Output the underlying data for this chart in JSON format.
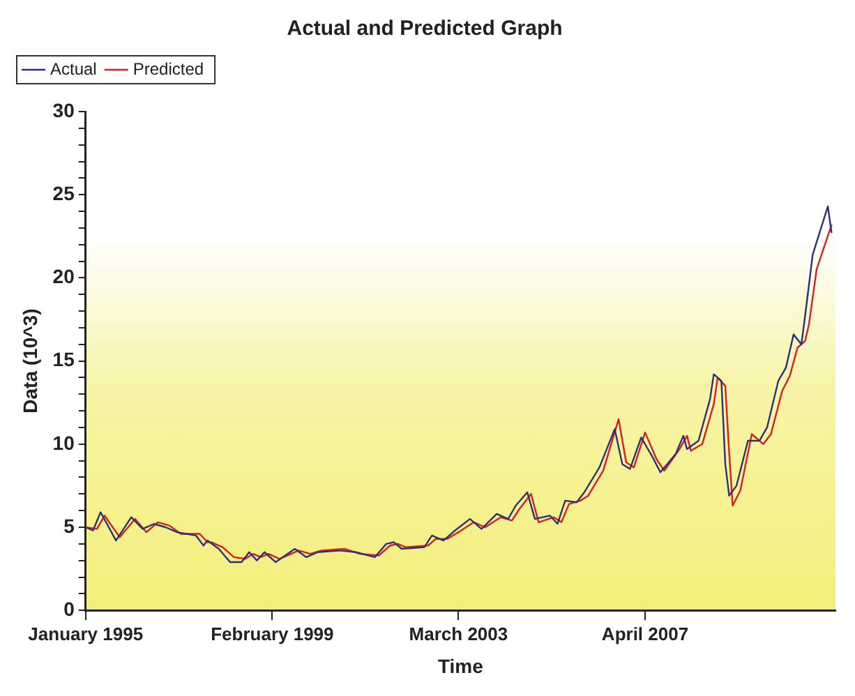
{
  "chart_data": {
    "type": "line",
    "title": "Actual and Predicted Graph",
    "xlabel": "Time",
    "ylabel": "Data (10^3)",
    "legend": "top left",
    "grid": false,
    "marker": "none",
    "line_style": "solid",
    "xlim": [
      "1995-01",
      "2011-06"
    ],
    "xticks": [
      {
        "value": "1995-01",
        "label": "January 1995"
      },
      {
        "value": "1999-02",
        "label": "February 1999"
      },
      {
        "value": "2003-03",
        "label": "March 2003"
      },
      {
        "value": "2007-04",
        "label": "April 2007"
      }
    ],
    "ylim": [
      0,
      30
    ],
    "yticks": [
      0,
      {
        "value": 1,
        "label": null
      },
      {
        "value": 2,
        "label": null
      },
      {
        "value": 3,
        "label": null
      },
      {
        "value": 4,
        "label": null
      },
      5,
      {
        "value": 6,
        "label": null
      },
      {
        "value": 7,
        "label": null
      },
      {
        "value": 8,
        "label": null
      },
      {
        "value": 9,
        "label": null
      },
      10,
      {
        "value": 11,
        "label": null
      },
      {
        "value": 12,
        "label": null
      },
      {
        "value": 13,
        "label": null
      },
      {
        "value": 14,
        "label": null
      },
      15,
      {
        "value": 16,
        "label": null
      },
      {
        "value": 17,
        "label": null
      },
      {
        "value": 18,
        "label": null
      },
      {
        "value": 19,
        "label": null
      },
      20,
      {
        "value": 21,
        "label": null
      },
      {
        "value": 22,
        "label": null
      },
      {
        "value": 23,
        "label": null
      },
      {
        "value": 24,
        "label": null
      },
      25,
      {
        "value": 26,
        "label": null
      },
      {
        "value": 27,
        "label": null
      },
      {
        "value": 28,
        "label": null
      },
      {
        "value": 29,
        "label": null
      },
      30
    ],
    "series": [
      {
        "name": "Actual",
        "color": "#2c2f7a",
        "x": [
          "1995-01",
          "1995-03",
          "1995-05",
          "1995-09",
          "1996-01",
          "1996-04",
          "1996-07",
          "1996-10",
          "1997-01",
          "1997-06",
          "1997-08",
          "1997-09",
          "1997-12",
          "1998-03",
          "1998-06",
          "1998-08",
          "1998-10",
          "1998-12",
          "1999-03",
          "1999-08",
          "1999-11",
          "2000-02",
          "2000-08",
          "2000-12",
          "2001-05",
          "2001-08",
          "2001-10",
          "2001-12",
          "2002-06",
          "2002-08",
          "2002-11",
          "2003-02",
          "2003-06",
          "2003-09",
          "2004-01",
          "2004-04",
          "2004-06",
          "2004-09",
          "2004-11",
          "2005-03",
          "2005-05",
          "2005-07",
          "2005-10",
          "2005-12",
          "2006-04",
          "2006-08",
          "2006-10",
          "2006-12",
          "2007-03",
          "2007-06",
          "2007-08",
          "2007-12",
          "2008-02",
          "2008-03",
          "2008-06",
          "2008-09",
          "2008-10",
          "2008-12",
          "2009-01",
          "2009-02",
          "2009-04",
          "2009-07",
          "2009-10",
          "2009-12",
          "2010-03",
          "2010-05",
          "2010-07",
          "2010-09",
          "2010-10",
          "2010-12",
          "2011-04",
          "2011-05"
        ],
        "values": [
          5.0,
          4.8,
          5.9,
          4.2,
          5.6,
          4.9,
          5.2,
          5.0,
          4.7,
          4.5,
          3.9,
          4.2,
          3.7,
          2.9,
          2.9,
          3.5,
          3.0,
          3.5,
          2.9,
          3.7,
          3.2,
          3.5,
          3.6,
          3.5,
          3.2,
          4.0,
          4.1,
          3.7,
          3.8,
          4.5,
          4.2,
          4.8,
          5.5,
          4.9,
          5.8,
          5.5,
          6.3,
          7.1,
          5.5,
          5.7,
          5.2,
          6.6,
          6.5,
          7.1,
          8.6,
          10.9,
          8.8,
          8.5,
          10.4,
          9.2,
          8.3,
          9.4,
          10.5,
          9.7,
          10.2,
          12.7,
          14.2,
          13.8,
          8.8,
          6.9,
          7.5,
          10.2,
          10.2,
          11.0,
          13.8,
          14.6,
          16.6,
          16.0,
          17.7,
          21.4,
          24.3,
          22.7
        ]
      },
      {
        "name": "Predicted",
        "color": "#d42020",
        "x": [
          "1995-01",
          "1995-04",
          "1995-06",
          "1995-10",
          "1996-02",
          "1996-05",
          "1996-08",
          "1996-11",
          "1997-02",
          "1997-07",
          "1997-09",
          "1997-10",
          "1998-01",
          "1998-04",
          "1998-07",
          "1998-09",
          "1998-11",
          "1999-01",
          "1999-04",
          "1999-09",
          "1999-12",
          "2000-03",
          "2000-09",
          "2001-01",
          "2001-06",
          "2001-09",
          "2001-11",
          "2002-01",
          "2002-07",
          "2002-09",
          "2002-12",
          "2003-03",
          "2003-07",
          "2003-10",
          "2004-02",
          "2004-05",
          "2004-07",
          "2004-10",
          "2004-12",
          "2005-04",
          "2005-06",
          "2005-08",
          "2005-11",
          "2006-01",
          "2006-05",
          "2006-09",
          "2006-11",
          "2007-01",
          "2007-04",
          "2007-07",
          "2007-09",
          "2008-01",
          "2008-03",
          "2008-04",
          "2008-07",
          "2008-10",
          "2008-11",
          "2009-01",
          "2009-02",
          "2009-03",
          "2009-05",
          "2009-08",
          "2009-11",
          "2010-01",
          "2010-04",
          "2010-06",
          "2010-08",
          "2010-10",
          "2010-11",
          "2011-01",
          "2011-05"
        ],
        "values": [
          5.0,
          4.9,
          5.7,
          4.4,
          5.5,
          4.7,
          5.3,
          5.1,
          4.6,
          4.6,
          4.1,
          4.1,
          3.8,
          3.2,
          3.1,
          3.4,
          3.2,
          3.4,
          3.1,
          3.6,
          3.4,
          3.6,
          3.7,
          3.4,
          3.3,
          3.9,
          4.0,
          3.8,
          3.9,
          4.3,
          4.3,
          4.7,
          5.3,
          5.0,
          5.6,
          5.4,
          6.1,
          7.0,
          5.3,
          5.6,
          5.3,
          6.4,
          6.6,
          6.9,
          8.4,
          11.5,
          8.9,
          8.6,
          10.7,
          9.1,
          8.4,
          9.7,
          10.5,
          9.6,
          10.0,
          12.4,
          14.0,
          13.5,
          9.5,
          6.3,
          7.2,
          10.6,
          10.0,
          10.6,
          13.2,
          14.1,
          15.8,
          16.2,
          17.2,
          20.5,
          23.2
        ]
      }
    ]
  }
}
